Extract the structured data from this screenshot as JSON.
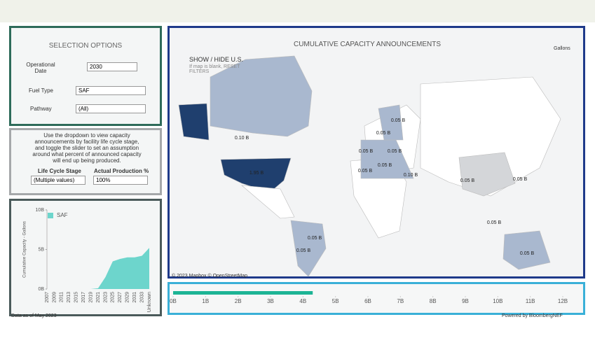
{
  "selection": {
    "title": "SELECTION OPTIONS",
    "operational_date_label": "Operational Date",
    "year": "2030",
    "fuel_type_label": "Fuel Type",
    "fuel_type": "SAF",
    "pathway_label": "Pathway",
    "pathway": "(All)"
  },
  "lifecycle": {
    "instructions": "Use the dropdown to view capacity announcements by facility life cycle stage, and toggle the slider to set an assumption around what percent of announced capacity will end up being produced.",
    "stage_label": "Life Cycle Stage",
    "stage": "(Multiple values)",
    "production_label": "Actual Production %",
    "production": "100%"
  },
  "map": {
    "title": "CUMULATIVE CAPACITY ANNOUNCEMENTS",
    "show_hide": "SHOW / HIDE U.S.",
    "hint": "If map is blank, RESET FILTERS",
    "units": "Gallons",
    "attribution": "© 2023 Mapbox © OpenStreetMap",
    "labels": [
      "0.10 B",
      "1.95 B",
      "0.05 B",
      "0.05 B",
      "0.05 B",
      "0.05 B",
      "0.05 B",
      "0.05 B",
      "0.05 B",
      "0.05 B",
      "0.05 B",
      "0.05 B",
      "0.10 B",
      "0.05 B",
      "0.05 B"
    ]
  },
  "chart_data": [
    {
      "type": "area",
      "y_label": "Cumulative Capacity - Gallons",
      "categories": [
        "2007",
        "2009",
        "2011",
        "2013",
        "2015",
        "2017",
        "2019",
        "2021",
        "2023",
        "2025",
        "2027",
        "2029",
        "2031",
        "2033",
        "Unknown"
      ],
      "series": [
        {
          "name": "SAF",
          "color": "#6dd5cc",
          "values": [
            0,
            0,
            0,
            0,
            0,
            0,
            0,
            0.1,
            1.5,
            3.5,
            3.8,
            4,
            4,
            4.2,
            5.2
          ]
        }
      ],
      "ylim": [
        0,
        10
      ],
      "yticks": [
        {
          "value": 0,
          "label": "0B"
        },
        {
          "value": 5,
          "label": "5B"
        },
        {
          "value": 10,
          "label": "10B"
        }
      ]
    },
    {
      "type": "hbar",
      "values": [
        4.3
      ],
      "color": "#1db495",
      "xlim": [
        0,
        12
      ],
      "xticks": [
        {
          "value": 0,
          "label": "0B"
        },
        {
          "value": 1,
          "label": "1B"
        },
        {
          "value": 2,
          "label": "2B"
        },
        {
          "value": 3,
          "label": "3B"
        },
        {
          "value": 4,
          "label": "4B"
        },
        {
          "value": 5,
          "label": "5B"
        },
        {
          "value": 6,
          "label": "6B"
        },
        {
          "value": 7,
          "label": "7B"
        },
        {
          "value": 8,
          "label": "8B"
        },
        {
          "value": 9,
          "label": "9B"
        },
        {
          "value": 10,
          "label": "10B"
        },
        {
          "value": 11,
          "label": "11B"
        },
        {
          "value": 12,
          "label": "12B"
        }
      ]
    }
  ],
  "footer": {
    "data_as_of": "Data as of May 2023",
    "powered": "Powered by BloombergNEF"
  }
}
